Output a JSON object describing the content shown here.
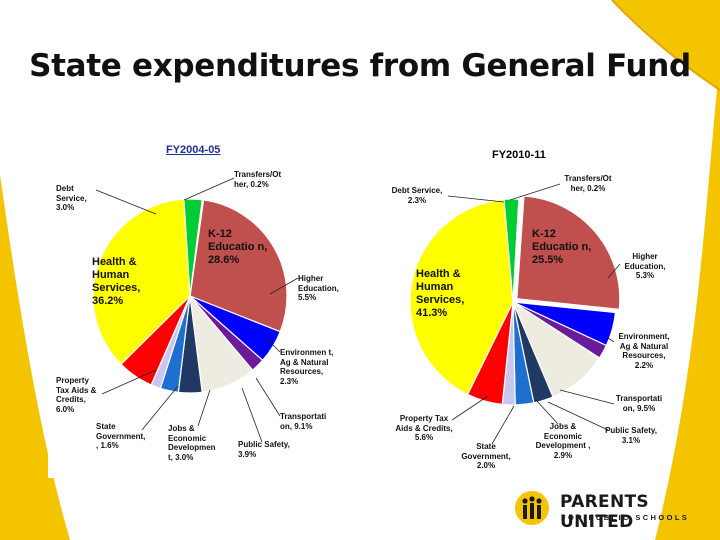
{
  "slide": {
    "title": "State expenditures from General Fund"
  },
  "colors": {
    "accent_yellow": "#f5c400",
    "k12": "#c0504d",
    "health": "#ffff00",
    "higher_ed": "#0000ff",
    "transfers": "#00cc33"
  },
  "logo": {
    "name": "PARENTS UNITED",
    "tagline": "FOR PUBLIC SCHOOLS"
  },
  "chart_data": [
    {
      "type": "pie",
      "title": "FY2004-05",
      "slices": [
        {
          "label": "K-12 Educatio n, 28.6%",
          "value": 28.6,
          "color": "#c0504d",
          "inside": true
        },
        {
          "label": "Higher Education, 5.5%",
          "value": 5.5,
          "color": "#0000ff"
        },
        {
          "label": "Environmen t, Ag & Natural Resources, 2.3%",
          "value": 2.3,
          "color": "#6a1b9a"
        },
        {
          "label": "Transportati on, 9.1%",
          "value": 9.1,
          "color": "#eeece1"
        },
        {
          "label": "Public Safety, 3.9%",
          "value": 3.9,
          "color": "#1f3864"
        },
        {
          "label": "Jobs & Economic Developmen t, 3.0%",
          "value": 3.0,
          "color": "#1f6fd1"
        },
        {
          "label": "State Government, , 1.6%",
          "value": 1.6,
          "color": "#c9c6f0"
        },
        {
          "label": "Property Tax Aids & Credits, 6.0%",
          "value": 6.0,
          "color": "#ff0000"
        },
        {
          "label": "Health & Human Services, 36.2%",
          "value": 36.2,
          "color": "#ffff00",
          "inside": true
        },
        {
          "label": "Debt Service, 3.0%",
          "value": 3.0,
          "color": "#00cc33"
        },
        {
          "label": "Transfers/Ot her, 0.2%",
          "value": 0.2,
          "color": "#999999"
        }
      ]
    },
    {
      "type": "pie",
      "title": "FY2010-11",
      "slices": [
        {
          "label": "K-12 Educatio n, 25.5%",
          "value": 25.5,
          "color": "#c0504d",
          "inside": true
        },
        {
          "label": "Higher Education, 5.3%",
          "value": 5.3,
          "color": "#0000ff"
        },
        {
          "label": "Environment, Ag & Natural Resources, 2.2%",
          "value": 2.2,
          "color": "#6a1b9a"
        },
        {
          "label": "Transportati on, 9.5%",
          "value": 9.5,
          "color": "#eeece1"
        },
        {
          "label": "Public Safety, 3.1%",
          "value": 3.1,
          "color": "#1f3864"
        },
        {
          "label": "Jobs & Economic Development , 2.9%",
          "value": 2.9,
          "color": "#1f6fd1"
        },
        {
          "label": "State Government, 2.0%",
          "value": 2.0,
          "color": "#c9c6f0"
        },
        {
          "label": "Property Tax Aids & Credits, 5.6%",
          "value": 5.6,
          "color": "#ff0000"
        },
        {
          "label": "Health & Human Services, 41.3%",
          "value": 41.3,
          "color": "#ffff00",
          "inside": true
        },
        {
          "label": "Debt Service, 2.3%",
          "value": 2.3,
          "color": "#00cc33"
        },
        {
          "label": "Transfers/Ot her, 0.2%",
          "value": 0.2,
          "color": "#999999"
        }
      ]
    }
  ]
}
